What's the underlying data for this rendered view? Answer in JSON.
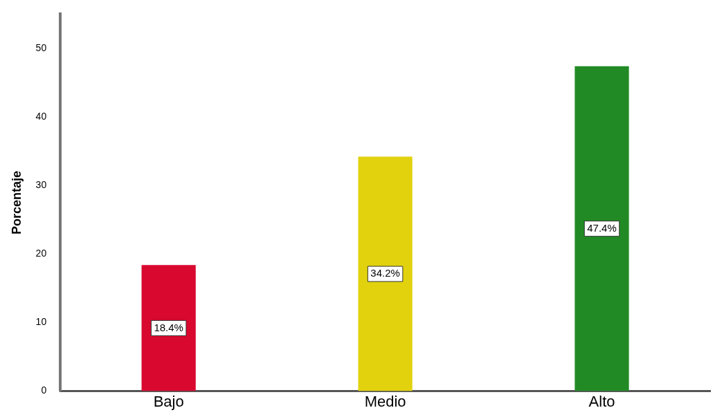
{
  "chart_data": {
    "type": "bar",
    "ylabel": "Porcentaje",
    "categories": [
      "Bajo",
      "Medio",
      "Alto"
    ],
    "values": [
      18.4,
      34.2,
      47.4
    ],
    "colors": [
      "#d9082f",
      "#e2d20e",
      "#218a24"
    ],
    "value_labels": [
      "18.4%",
      "34.2%",
      "47.4%"
    ],
    "ylim": [
      0,
      55
    ],
    "yticks": [
      0,
      10,
      20,
      30,
      40,
      50
    ],
    "grid": false,
    "legend": false
  }
}
